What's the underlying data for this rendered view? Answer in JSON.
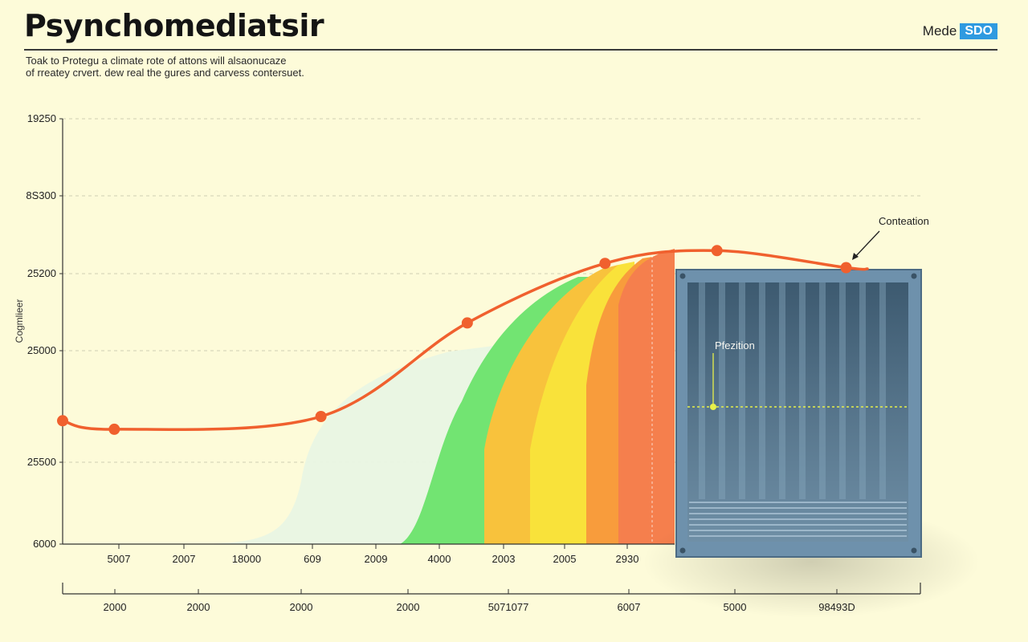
{
  "header": {
    "title": "Psynchomediatsir",
    "brand_text": "Mede",
    "brand_badge": "SDO",
    "subtitle_lines": [
      "Toak to Protegu a climate rote of attons will alsaonucaze",
      "of rreatey crvert. dew real the gures and carvess contersuet."
    ]
  },
  "chart_data": {
    "type": "line",
    "title": "Psynchomediatsir",
    "ylabel": "Cogmlieer",
    "xlabel": "",
    "y_tick_labels": [
      "19250",
      "8S300",
      "25200",
      "25000",
      "25500",
      "6000"
    ],
    "x_tick_labels_upper": [
      "5007",
      "2007",
      "18000",
      "609",
      "2009",
      "4000",
      "2003",
      "2005",
      "2930"
    ],
    "x_tick_labels_lower": [
      "2000",
      "2000",
      "2000",
      "2000",
      "5071077",
      "6007",
      "5000",
      "98493D"
    ],
    "series": [
      {
        "color": "#f0602e",
        "points": [
          {
            "x": 0.0,
            "y": 0.29
          },
          {
            "x": 0.06,
            "y": 0.27
          },
          {
            "x": 0.3,
            "y": 0.3
          },
          {
            "x": 0.47,
            "y": 0.52
          },
          {
            "x": 0.63,
            "y": 0.66
          },
          {
            "x": 0.76,
            "y": 0.69
          },
          {
            "x": 0.91,
            "y": 0.65
          }
        ]
      }
    ],
    "area_bands": [
      {
        "color": "#e9f5e4"
      },
      {
        "color": "#72e472"
      },
      {
        "color": "#f8c23c"
      },
      {
        "color": "#f9e23a"
      },
      {
        "color": "#f89c3c"
      },
      {
        "color": "#f57f4d"
      }
    ],
    "grid": true,
    "annotations": [
      "Conteation",
      "Pfezition"
    ]
  },
  "colors": {
    "background": "#fdfbd9",
    "line": "#f0602e",
    "grid": "#cfcfb4",
    "box": "#6b8ea8",
    "accent": "#2f9ae0"
  }
}
